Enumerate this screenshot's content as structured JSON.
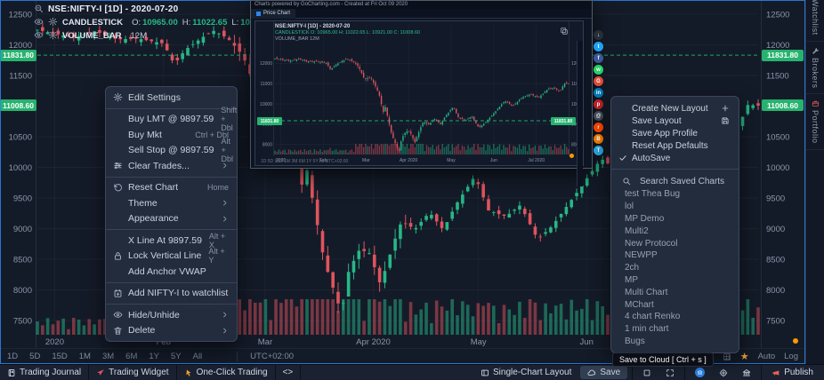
{
  "colors": {
    "up": "#26b887",
    "down": "#e0545e",
    "accent": "#2b87f0",
    "badge": "#27b36f",
    "orange_dot": "#ff9800",
    "star": "#f2a33c"
  },
  "legend": {
    "symbol_text": "NSE:NIFTY-I [1D] - 2020-07-20",
    "candle_row": {
      "name": "CANDLESTICK",
      "o_label": "O:",
      "o_value": "10965.00",
      "h_label": "H:",
      "h_value": "11022.65",
      "l_label": "L:",
      "l_value": "10921.00",
      "c_label": "C:",
      "c_value": "11008.60"
    },
    "volume_row": {
      "name": "VOLUME_BAR",
      "value": "12M"
    }
  },
  "chart_data": {
    "type": "candlestick",
    "symbol": "NSE:NIFTY-I",
    "interval": "1D",
    "last_date": "2020-07-20",
    "last_ohlc": {
      "open": 10965.0,
      "high": 11022.65,
      "low": 10921.0,
      "close": 11008.6
    },
    "last_volume": "12M",
    "ylim": [
      7300,
      12700
    ],
    "price_ticks": [
      12500,
      12000,
      11500,
      10500,
      10000,
      9500,
      9000,
      8500,
      8000,
      7500
    ],
    "price_badges": [
      {
        "value": "11831.80",
        "price": 11831.8,
        "style": "dashed-level"
      },
      {
        "value": "11008.60",
        "price": 11008.6,
        "style": "last-price"
      }
    ],
    "x_labels": [
      {
        "label": "2020",
        "f": 0.024
      },
      {
        "label": "Feb",
        "f": 0.175
      },
      {
        "label": "Mar",
        "f": 0.316
      },
      {
        "label": "Apr 2020",
        "f": 0.466
      },
      {
        "label": "May",
        "f": 0.612
      },
      {
        "label": "Jun",
        "f": 0.762
      }
    ],
    "price_anchors": [
      [
        0.0,
        12245
      ],
      [
        0.025,
        12182
      ],
      [
        0.05,
        12119
      ],
      [
        0.08,
        12224
      ],
      [
        0.11,
        12089
      ],
      [
        0.14,
        12101
      ],
      [
        0.175,
        12022
      ],
      [
        0.19,
        11680
      ],
      [
        0.205,
        11918
      ],
      [
        0.23,
        12129
      ],
      [
        0.245,
        12230
      ],
      [
        0.265,
        12098
      ],
      [
        0.285,
        11829
      ],
      [
        0.305,
        11220
      ],
      [
        0.325,
        11303
      ],
      [
        0.34,
        10950
      ],
      [
        0.355,
        10451
      ],
      [
        0.369,
        9590
      ],
      [
        0.374,
        9955
      ],
      [
        0.398,
        8469
      ],
      [
        0.422,
        7610
      ],
      [
        0.432,
        8317
      ],
      [
        0.447,
        8660
      ],
      [
        0.461,
        8598
      ],
      [
        0.476,
        8084
      ],
      [
        0.495,
        8792
      ],
      [
        0.505,
        9112
      ],
      [
        0.524,
        8994
      ],
      [
        0.544,
        9267
      ],
      [
        0.563,
        8981
      ],
      [
        0.58,
        9380
      ],
      [
        0.607,
        9860
      ],
      [
        0.626,
        9294
      ],
      [
        0.65,
        9199
      ],
      [
        0.67,
        9384
      ],
      [
        0.694,
        8823
      ],
      [
        0.714,
        9039
      ],
      [
        0.748,
        9580
      ],
      [
        0.782,
        10142
      ],
      [
        0.811,
        9902
      ],
      [
        0.84,
        10305
      ],
      [
        0.869,
        10471
      ],
      [
        0.898,
        10312
      ],
      [
        0.932,
        10764
      ],
      [
        0.952,
        10768
      ],
      [
        0.971,
        10607
      ],
      [
        0.985,
        11018
      ],
      [
        1.0,
        11008.6
      ]
    ],
    "bars": 140
  },
  "popup": {
    "header_text": "Charts powered by GoCharting.com  -  Created at Fri Oct 09 2020",
    "tab_label": "Price Chart",
    "legend_line1": "NSE:NIFTY-I [1D] - 2020-07-20",
    "legend_line2": "CANDLESTICK O: 10965.00 H: 11022.65 L: 10921.00 C: 11008.60",
    "legend_line3": "VOLUME_BAR 12M",
    "badge": "11831.80",
    "x_labels": [
      {
        "label": "2020",
        "f": 0.02
      },
      {
        "label": "Feb",
        "f": 0.165
      },
      {
        "label": "Mar",
        "f": 0.31
      },
      {
        "label": "Apr 2020",
        "f": 0.455
      },
      {
        "label": "May",
        "f": 0.6
      },
      {
        "label": "Jun",
        "f": 0.745
      },
      {
        "label": "Jul 2020",
        "f": 0.89
      }
    ],
    "mini_tf": "1D  5D  15D  1M  3M  6M  1Y  5Y  All      UTC+02:00"
  },
  "share_buttons": [
    {
      "name": "download",
      "color": "#262e3a",
      "glyph": "↓"
    },
    {
      "name": "twitter",
      "color": "#1da1f2",
      "glyph": "t"
    },
    {
      "name": "facebook",
      "color": "#3b5998",
      "glyph": "f"
    },
    {
      "name": "whatsapp",
      "color": "#25d366",
      "glyph": "w"
    },
    {
      "name": "google-plus",
      "color": "#dd4b39",
      "glyph": "G"
    },
    {
      "name": "linkedin",
      "color": "#0077b5",
      "glyph": "in"
    },
    {
      "name": "pinterest",
      "color": "#bd2126",
      "glyph": "p"
    },
    {
      "name": "email",
      "color": "#414b59",
      "glyph": "@"
    },
    {
      "name": "reddit",
      "color": "#ff4500",
      "glyph": "r"
    },
    {
      "name": "blogger",
      "color": "#f57d00",
      "glyph": "B"
    },
    {
      "name": "telegram",
      "color": "#2ca5e0",
      "glyph": "T"
    }
  ],
  "context_menu": {
    "sections": [
      [
        {
          "icon": "gear",
          "label": "Edit Settings"
        }
      ],
      [
        {
          "label": "Buy LMT @ 9897.59",
          "shortcut": "Shift + Dbl"
        },
        {
          "label": "Buy Mkt",
          "shortcut": "Ctrl + Dbl"
        },
        {
          "label": "Sell Stop @ 9897.59",
          "shortcut": "Alt + Dbl"
        },
        {
          "icon": "sliders",
          "label": "Clear Trades...",
          "submenu": true
        }
      ],
      [
        {
          "icon": "reset",
          "label": "Reset Chart",
          "shortcut": "Home"
        },
        {
          "label": "Theme",
          "submenu": true
        },
        {
          "label": "Appearance",
          "submenu": true
        }
      ],
      [
        {
          "label": "X Line At 9897.59",
          "shortcut": "Alt + X"
        },
        {
          "icon": "lock",
          "label": "Lock Vertical Line",
          "shortcut": "Alt + Y"
        },
        {
          "label": "Add Anchor VWAP"
        }
      ],
      [
        {
          "icon": "watchlist-add",
          "label": "Add NIFTY-I to watchlist"
        }
      ],
      [
        {
          "icon": "eye",
          "label": "Hide/Unhide",
          "submenu": true
        },
        {
          "icon": "trash",
          "label": "Delete",
          "submenu": true
        }
      ]
    ]
  },
  "layout_menu": {
    "items": [
      {
        "label": "Create New Layout",
        "right_icon": "plus"
      },
      {
        "label": "Save Layout",
        "right_icon": "floppy"
      },
      {
        "label": "Save App Profile"
      },
      {
        "label": "Reset App Defaults"
      },
      {
        "label": "AutoSave",
        "checked": true
      }
    ],
    "search_placeholder": "Search Saved Charts.",
    "saved_charts": [
      "test Thea Bug",
      "lol",
      "MP Demo",
      "Multi2",
      "New Protocol",
      "NEWPP",
      "2ch",
      "MP",
      "Multi Chart",
      "MChart",
      "4 chart Renko",
      "1 min chart",
      "Bugs"
    ]
  },
  "timeframe_bar": {
    "timeframes": [
      "1D",
      "5D",
      "15D",
      "1M",
      "3M",
      "6M",
      "1Y",
      "5Y",
      "All"
    ],
    "timezone": "UTC+02:00",
    "star_glyph": "★",
    "auto_label": "Auto",
    "log_label": "Log"
  },
  "bottom_bar": {
    "left": [
      {
        "icon": "journal",
        "label": "Trading Journal"
      },
      {
        "icon": "dart",
        "label": "Trading Widget",
        "icon_color": "#e0545e"
      },
      {
        "icon": "pointer",
        "label": "One-Click Trading",
        "icon_color": "#f0a030"
      },
      {
        "label": "<>"
      }
    ],
    "right": [
      {
        "icon": "columns",
        "label": "Single-Chart Layout"
      },
      {
        "icon": "cloud",
        "label": "Save",
        "highlight": true
      },
      {
        "divider": true
      },
      {
        "icon": "square"
      },
      {
        "icon": "maximize"
      },
      {
        "divider": true
      },
      {
        "icon": "camera",
        "camera_circle": true
      },
      {
        "icon": "target"
      },
      {
        "icon": "bank"
      },
      {
        "divider": true
      },
      {
        "icon": "megaphone",
        "label": "Publish",
        "icon_color": "#e9605c"
      }
    ]
  },
  "tooltip": "Save to Cloud [ Ctrl + s ]",
  "side_tabs": [
    {
      "label": "Watchlist",
      "icon": null
    },
    {
      "label": "Brokers",
      "icon": "wrench"
    },
    {
      "label": "Portfolio",
      "icon": "briefcase",
      "icon_color": "#d65a52"
    }
  ]
}
